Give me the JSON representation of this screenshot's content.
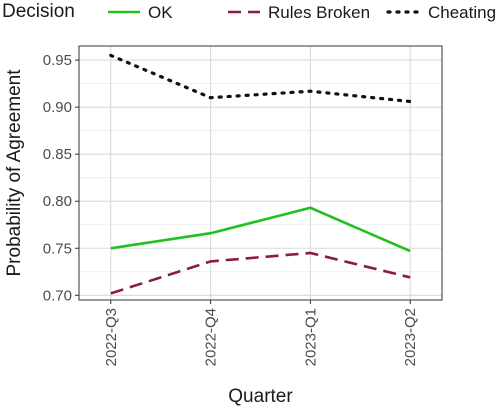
{
  "chart_data": {
    "type": "line",
    "title": "",
    "xlabel": "Quarter",
    "ylabel": "Probability of Agreement",
    "categories": [
      "2022-Q3",
      "2022-Q4",
      "2023-Q1",
      "2023-Q2"
    ],
    "yticks": [
      "0.70",
      "0.75",
      "0.80",
      "0.85",
      "0.90",
      "0.95"
    ],
    "ylim": [
      0.695,
      0.965
    ],
    "grid": true,
    "legend": {
      "title": "Decision",
      "position": "top"
    },
    "series": [
      {
        "name": "OK",
        "values": [
          0.75,
          0.766,
          0.793,
          0.747
        ],
        "color": "#22c01e",
        "dash": "solid"
      },
      {
        "name": "Rules Broken",
        "values": [
          0.702,
          0.736,
          0.745,
          0.719
        ],
        "color": "#8b1a4a",
        "dash": "dashed"
      },
      {
        "name": "Cheating",
        "values": [
          0.955,
          0.91,
          0.917,
          0.906
        ],
        "color": "#111111",
        "dash": "dotted"
      }
    ]
  }
}
